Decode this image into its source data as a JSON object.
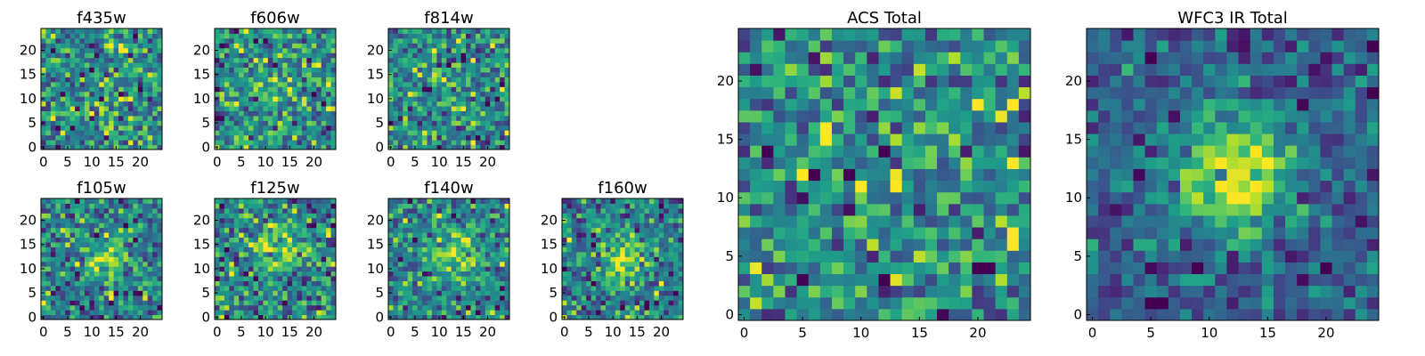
{
  "figure": {
    "colormap": "viridis"
  },
  "chart_data": [
    {
      "type": "heatmap",
      "title": "f435w",
      "grid_size": 25,
      "xlim": [
        -0.5,
        24.5
      ],
      "ylim": [
        -0.5,
        24.5
      ],
      "xticks": [
        0,
        5,
        10,
        15,
        20
      ],
      "yticks": [
        0,
        5,
        10,
        15,
        20
      ],
      "source_peak": null,
      "source_center": [
        12,
        12
      ],
      "source_width": 4.0,
      "noise_level": 1.0,
      "seed": 11
    },
    {
      "type": "heatmap",
      "title": "f606w",
      "grid_size": 25,
      "xlim": [
        -0.5,
        24.5
      ],
      "ylim": [
        -0.5,
        24.5
      ],
      "xticks": [
        0,
        5,
        10,
        15,
        20
      ],
      "yticks": [
        0,
        5,
        10,
        15,
        20
      ],
      "source_peak": 0.3,
      "source_center": [
        12,
        13
      ],
      "source_width": 4.0,
      "noise_level": 1.0,
      "seed": 23
    },
    {
      "type": "heatmap",
      "title": "f814w",
      "grid_size": 25,
      "xlim": [
        -0.5,
        24.5
      ],
      "ylim": [
        -0.5,
        24.5
      ],
      "xticks": [
        0,
        5,
        10,
        15,
        20
      ],
      "yticks": [
        0,
        5,
        10,
        15,
        20
      ],
      "source_peak": 0.2,
      "source_center": [
        12,
        12
      ],
      "source_width": 4.0,
      "noise_level": 1.0,
      "seed": 37
    },
    {
      "type": "heatmap",
      "title": "f105w",
      "grid_size": 25,
      "xlim": [
        -0.5,
        24.5
      ],
      "ylim": [
        -0.5,
        24.5
      ],
      "xticks": [
        0,
        5,
        10,
        15,
        20
      ],
      "yticks": [
        0,
        5,
        10,
        15,
        20
      ],
      "source_peak": 1.4,
      "source_center": [
        13,
        12
      ],
      "source_width": 3.5,
      "noise_level": 0.8,
      "seed": 41
    },
    {
      "type": "heatmap",
      "title": "f125w",
      "grid_size": 25,
      "xlim": [
        -0.5,
        24.5
      ],
      "ylim": [
        -0.5,
        24.5
      ],
      "xticks": [
        0,
        5,
        10,
        15,
        20
      ],
      "yticks": [
        0,
        5,
        10,
        15,
        20
      ],
      "source_peak": 1.3,
      "source_center": [
        13,
        13
      ],
      "source_width": 3.5,
      "noise_level": 0.85,
      "seed": 53
    },
    {
      "type": "heatmap",
      "title": "f140w",
      "grid_size": 25,
      "xlim": [
        -0.5,
        24.5
      ],
      "ylim": [
        -0.5,
        24.5
      ],
      "xticks": [
        0,
        5,
        10,
        15,
        20
      ],
      "yticks": [
        0,
        5,
        10,
        15,
        20
      ],
      "source_peak": 1.5,
      "source_center": [
        13,
        13
      ],
      "source_width": 4.0,
      "noise_level": 0.8,
      "seed": 67
    },
    {
      "type": "heatmap",
      "title": "f160w",
      "grid_size": 25,
      "xlim": [
        -0.5,
        24.5
      ],
      "ylim": [
        -0.5,
        24.5
      ],
      "xticks": [
        0,
        5,
        10,
        15,
        20
      ],
      "yticks": [
        0,
        5,
        10,
        15,
        20
      ],
      "source_peak": 2.2,
      "source_center": [
        12,
        12
      ],
      "source_width": 3.0,
      "noise_level": 0.8,
      "seed": 79
    },
    {
      "type": "heatmap",
      "title": "ACS Total",
      "grid_size": 25,
      "xlim": [
        -0.5,
        24.5
      ],
      "ylim": [
        -0.5,
        24.5
      ],
      "xticks": [
        0,
        5,
        10,
        15,
        20
      ],
      "yticks": [
        0,
        5,
        10,
        15,
        20
      ],
      "source_peak": 0.3,
      "source_center": [
        12,
        12
      ],
      "source_width": 5.0,
      "noise_level": 0.9,
      "seed": 97
    },
    {
      "type": "heatmap",
      "title": "WFC3 IR Total",
      "grid_size": 25,
      "xlim": [
        -0.5,
        24.5
      ],
      "ylim": [
        -0.5,
        24.5
      ],
      "xticks": [
        0,
        5,
        10,
        15,
        20
      ],
      "yticks": [
        0,
        5,
        10,
        15,
        20
      ],
      "source_peak": 2.6,
      "source_center": [
        12,
        12
      ],
      "source_width": 3.5,
      "noise_level": 0.55,
      "seed": 113
    }
  ]
}
